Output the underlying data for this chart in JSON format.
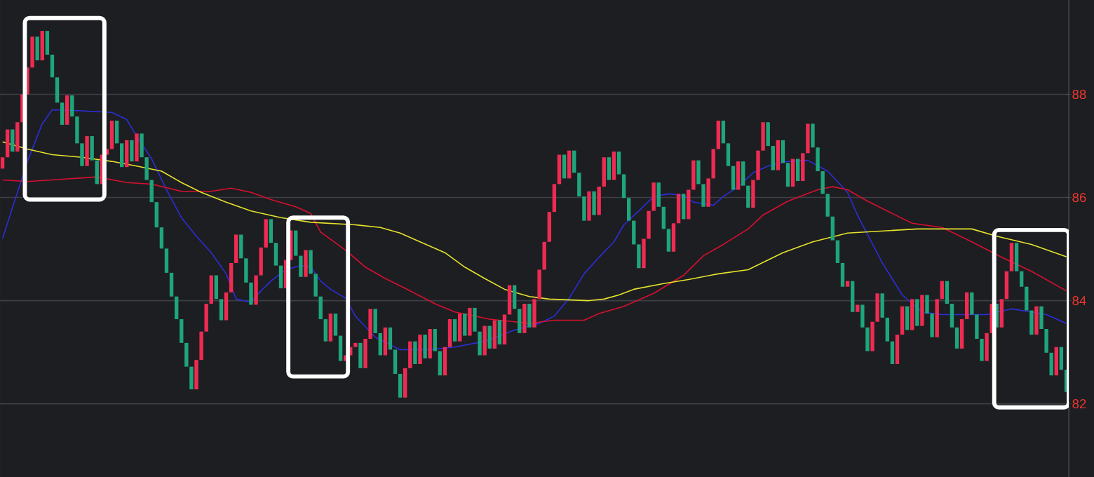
{
  "chart_data": {
    "type": "candlestick",
    "categories": [
      null,
      null,
      null,
      null,
      null,
      null,
      null,
      null,
      null,
      null,
      null,
      null,
      null,
      null,
      null,
      null,
      null,
      null,
      null,
      null,
      null,
      null,
      null,
      null,
      null,
      null,
      null,
      null,
      null,
      null,
      null,
      null,
      null,
      null,
      null,
      null,
      null,
      null,
      null,
      null,
      null,
      null,
      null,
      null,
      null,
      null,
      null,
      null,
      null,
      null,
      null,
      null,
      null,
      null,
      null,
      null,
      null,
      null,
      null,
      null,
      null,
      null,
      null,
      null,
      null,
      null,
      null,
      null,
      null,
      null,
      null,
      null,
      null,
      null,
      null,
      null,
      null,
      null,
      null,
      null,
      null,
      null,
      null,
      null,
      null,
      null,
      null,
      null,
      null,
      null,
      null,
      null,
      null,
      null,
      null,
      null,
      null,
      null,
      null,
      null,
      null,
      null,
      null,
      null,
      null,
      null,
      null,
      null,
      null,
      null,
      null,
      null,
      null,
      null,
      null,
      null,
      null,
      null,
      null,
      null,
      null,
      null,
      null,
      null,
      null,
      null,
      null,
      null,
      null,
      null,
      null,
      null,
      null,
      null,
      null,
      null,
      null,
      null,
      null,
      null,
      null,
      null,
      null,
      null,
      null,
      null,
      null,
      null,
      null,
      null,
      null,
      null,
      null,
      null,
      null,
      null,
      null,
      null,
      null,
      null,
      null,
      null,
      null,
      null,
      null,
      null,
      null,
      null,
      null,
      null,
      null,
      null,
      null,
      null,
      null,
      null,
      null,
      null,
      null,
      null,
      null,
      null,
      null,
      null,
      null,
      null,
      null,
      null,
      null,
      null,
      null,
      null,
      null,
      null,
      null,
      null,
      null,
      null,
      null,
      null,
      null,
      null,
      null,
      null,
      null,
      null,
      null,
      null,
      null,
      null,
      null,
      null,
      null,
      null,
      null
    ],
    "ohlc": [
      [
        86.56,
        86.78,
        86.56,
        86.78
      ],
      [
        86.78,
        87.32,
        86.78,
        87.32
      ],
      [
        87.32,
        87.32,
        86.89,
        86.89
      ],
      [
        86.89,
        87.46,
        86.89,
        87.46
      ],
      [
        87.46,
        88.0,
        87.46,
        88.0
      ],
      [
        88.0,
        88.52,
        88.0,
        88.52
      ],
      [
        88.52,
        89.12,
        88.52,
        89.12
      ],
      [
        89.12,
        89.12,
        88.66,
        88.66
      ],
      [
        88.66,
        89.23,
        88.66,
        89.23
      ],
      [
        89.23,
        89.23,
        88.77,
        88.77
      ],
      [
        88.77,
        88.77,
        88.33,
        88.33
      ],
      [
        88.33,
        88.33,
        87.84,
        87.84
      ],
      [
        87.84,
        87.84,
        87.41,
        87.41
      ],
      [
        87.41,
        87.98,
        87.41,
        87.98
      ],
      [
        87.98,
        87.98,
        87.57,
        87.57
      ],
      [
        87.57,
        87.57,
        87.05,
        87.05
      ],
      [
        87.05,
        87.05,
        86.61,
        86.61
      ],
      [
        86.61,
        87.19,
        86.61,
        87.19
      ],
      [
        87.19,
        87.19,
        86.72,
        86.72
      ],
      [
        86.72,
        86.72,
        86.26,
        86.26
      ],
      [
        86.26,
        86.83,
        86.26,
        86.83
      ],
      [
        86.83,
        86.94,
        86.83,
        86.94
      ],
      [
        86.94,
        87.49,
        86.94,
        87.49
      ],
      [
        87.49,
        87.49,
        87.05,
        87.05
      ],
      [
        87.05,
        87.05,
        86.59,
        86.59
      ],
      [
        86.59,
        87.11,
        86.59,
        87.11
      ],
      [
        87.11,
        87.11,
        86.7,
        86.7
      ],
      [
        86.7,
        87.24,
        86.7,
        87.24
      ],
      [
        87.24,
        87.24,
        86.78,
        86.78
      ],
      [
        86.78,
        86.78,
        86.34,
        86.34
      ],
      [
        86.34,
        86.34,
        85.91,
        85.91
      ],
      [
        85.91,
        85.91,
        85.42,
        85.42
      ],
      [
        85.42,
        85.42,
        85.01,
        85.01
      ],
      [
        85.01,
        85.01,
        84.54,
        84.54
      ],
      [
        84.54,
        84.54,
        84.08,
        84.08
      ],
      [
        84.08,
        84.08,
        83.64,
        83.64
      ],
      [
        83.64,
        83.64,
        83.18,
        83.18
      ],
      [
        83.18,
        83.18,
        82.72,
        82.72
      ],
      [
        82.72,
        82.72,
        82.28,
        82.28
      ],
      [
        82.28,
        82.85,
        82.28,
        82.85
      ],
      [
        82.85,
        83.4,
        82.85,
        83.4
      ],
      [
        83.4,
        83.94,
        83.4,
        83.94
      ],
      [
        83.94,
        84.49,
        83.94,
        84.49
      ],
      [
        84.49,
        84.49,
        84.03,
        84.03
      ],
      [
        84.03,
        84.03,
        83.62,
        83.62
      ],
      [
        83.62,
        84.16,
        83.62,
        84.16
      ],
      [
        84.16,
        84.73,
        84.16,
        84.73
      ],
      [
        84.73,
        85.28,
        84.73,
        85.28
      ],
      [
        85.28,
        85.28,
        84.82,
        84.82
      ],
      [
        84.82,
        84.82,
        84.35,
        84.35
      ],
      [
        84.35,
        84.35,
        83.92,
        83.92
      ],
      [
        83.92,
        84.49,
        83.92,
        84.49
      ],
      [
        84.49,
        85.03,
        84.49,
        85.03
      ],
      [
        85.03,
        85.58,
        85.03,
        85.58
      ],
      [
        85.58,
        85.58,
        85.12,
        85.12
      ],
      [
        85.12,
        85.12,
        84.68,
        84.68
      ],
      [
        84.68,
        84.68,
        84.24,
        84.24
      ],
      [
        84.24,
        84.79,
        84.24,
        84.79
      ],
      [
        84.79,
        85.36,
        84.79,
        85.36
      ],
      [
        85.36,
        85.36,
        84.87,
        84.87
      ],
      [
        84.87,
        84.87,
        84.46,
        84.46
      ],
      [
        84.46,
        84.98,
        84.46,
        84.98
      ],
      [
        84.98,
        84.98,
        84.52,
        84.52
      ],
      [
        84.52,
        84.52,
        84.08,
        84.08
      ],
      [
        84.08,
        84.08,
        83.64,
        83.64
      ],
      [
        83.64,
        83.64,
        83.21,
        83.21
      ],
      [
        83.21,
        83.75,
        83.21,
        83.75
      ],
      [
        83.75,
        83.75,
        83.32,
        83.32
      ],
      [
        83.32,
        83.32,
        82.83,
        82.83
      ],
      [
        82.83,
        82.94,
        82.83,
        82.94
      ],
      [
        82.94,
        83.1,
        82.94,
        83.1
      ],
      [
        83.1,
        83.18,
        83.1,
        83.18
      ],
      [
        83.18,
        83.18,
        82.69,
        82.69
      ],
      [
        82.69,
        83.26,
        82.69,
        83.26
      ],
      [
        83.26,
        83.84,
        83.26,
        83.84
      ],
      [
        83.84,
        83.84,
        83.37,
        83.37
      ],
      [
        83.37,
        83.37,
        82.94,
        82.94
      ],
      [
        82.94,
        83.48,
        82.94,
        83.48
      ],
      [
        83.48,
        83.48,
        83.05,
        83.05
      ],
      [
        83.05,
        83.05,
        82.58,
        82.58
      ],
      [
        82.58,
        82.58,
        82.12,
        82.12
      ],
      [
        82.12,
        82.69,
        82.12,
        82.69
      ],
      [
        82.69,
        83.21,
        82.69,
        83.21
      ],
      [
        83.21,
        83.21,
        82.77,
        82.77
      ],
      [
        82.77,
        83.34,
        82.77,
        83.34
      ],
      [
        83.34,
        83.34,
        82.88,
        82.88
      ],
      [
        82.88,
        83.45,
        82.88,
        83.45
      ],
      [
        83.45,
        83.45,
        83.02,
        83.02
      ],
      [
        83.02,
        83.02,
        82.55,
        82.55
      ],
      [
        82.55,
        83.1,
        82.55,
        83.1
      ],
      [
        83.1,
        83.64,
        83.1,
        83.64
      ],
      [
        83.64,
        83.64,
        83.21,
        83.21
      ],
      [
        83.21,
        83.75,
        83.21,
        83.75
      ],
      [
        83.75,
        83.75,
        83.32,
        83.32
      ],
      [
        83.32,
        83.86,
        83.32,
        83.86
      ],
      [
        83.86,
        83.86,
        83.4,
        83.4
      ],
      [
        83.4,
        83.4,
        82.94,
        82.94
      ],
      [
        82.94,
        83.51,
        82.94,
        83.51
      ],
      [
        83.51,
        83.51,
        83.07,
        83.07
      ],
      [
        83.07,
        83.62,
        83.07,
        83.62
      ],
      [
        83.62,
        83.62,
        83.15,
        83.15
      ],
      [
        83.15,
        83.73,
        83.15,
        83.73
      ],
      [
        83.73,
        84.3,
        83.73,
        84.3
      ],
      [
        84.3,
        84.3,
        83.84,
        83.84
      ],
      [
        83.84,
        83.84,
        83.37,
        83.37
      ],
      [
        83.37,
        83.94,
        83.37,
        83.94
      ],
      [
        83.94,
        83.94,
        83.48,
        83.48
      ],
      [
        83.48,
        84.03,
        83.48,
        84.03
      ],
      [
        84.03,
        84.6,
        84.03,
        84.6
      ],
      [
        84.6,
        85.14,
        84.6,
        85.14
      ],
      [
        85.14,
        85.72,
        85.14,
        85.72
      ],
      [
        85.72,
        86.26,
        85.72,
        86.26
      ],
      [
        86.26,
        86.83,
        86.26,
        86.83
      ],
      [
        86.83,
        86.83,
        86.37,
        86.37
      ],
      [
        86.37,
        86.91,
        86.37,
        86.91
      ],
      [
        86.91,
        86.91,
        86.48,
        86.48
      ],
      [
        86.48,
        86.48,
        86.02,
        86.02
      ],
      [
        86.02,
        86.02,
        85.55,
        85.55
      ],
      [
        85.55,
        86.12,
        85.55,
        86.12
      ],
      [
        86.12,
        86.12,
        85.66,
        85.66
      ],
      [
        85.66,
        86.21,
        85.66,
        86.21
      ],
      [
        86.21,
        86.78,
        86.21,
        86.78
      ],
      [
        86.78,
        86.78,
        86.34,
        86.34
      ],
      [
        86.34,
        86.89,
        86.34,
        86.89
      ],
      [
        86.89,
        86.89,
        86.45,
        86.45
      ],
      [
        86.45,
        86.45,
        85.99,
        85.99
      ],
      [
        85.99,
        85.99,
        85.55,
        85.55
      ],
      [
        85.55,
        85.55,
        85.09,
        85.09
      ],
      [
        85.09,
        85.09,
        84.63,
        84.63
      ],
      [
        84.63,
        85.2,
        84.63,
        85.2
      ],
      [
        85.2,
        85.74,
        85.2,
        85.74
      ],
      [
        85.74,
        86.29,
        85.74,
        86.29
      ],
      [
        86.29,
        86.29,
        85.82,
        85.82
      ],
      [
        85.82,
        85.82,
        85.39,
        85.39
      ],
      [
        85.39,
        85.39,
        84.95,
        84.95
      ],
      [
        84.95,
        85.5,
        84.95,
        85.5
      ],
      [
        85.5,
        86.07,
        85.5,
        86.07
      ],
      [
        86.07,
        86.07,
        85.58,
        85.58
      ],
      [
        85.58,
        86.15,
        85.58,
        86.15
      ],
      [
        86.15,
        86.72,
        86.15,
        86.72
      ],
      [
        86.72,
        86.72,
        86.26,
        86.26
      ],
      [
        86.26,
        86.26,
        85.82,
        85.82
      ],
      [
        85.82,
        86.37,
        85.82,
        86.37
      ],
      [
        86.37,
        86.94,
        86.37,
        86.94
      ],
      [
        86.94,
        87.49,
        86.94,
        87.49
      ],
      [
        87.49,
        87.49,
        87.05,
        87.05
      ],
      [
        87.05,
        87.05,
        86.61,
        86.61
      ],
      [
        86.61,
        86.61,
        86.15,
        86.15
      ],
      [
        86.15,
        86.7,
        86.15,
        86.7
      ],
      [
        86.7,
        86.7,
        86.23,
        86.23
      ],
      [
        86.23,
        86.23,
        85.8,
        85.8
      ],
      [
        85.8,
        86.34,
        85.8,
        86.34
      ],
      [
        86.34,
        86.91,
        86.34,
        86.91
      ],
      [
        86.91,
        87.46,
        86.91,
        87.46
      ],
      [
        87.46,
        87.46,
        87.0,
        87.0
      ],
      [
        87.0,
        87.0,
        86.53,
        86.53
      ],
      [
        86.53,
        87.11,
        86.53,
        87.11
      ],
      [
        87.11,
        87.11,
        86.67,
        86.67
      ],
      [
        86.67,
        86.67,
        86.21,
        86.21
      ],
      [
        86.21,
        86.75,
        86.21,
        86.75
      ],
      [
        86.75,
        86.75,
        86.32,
        86.32
      ],
      [
        86.32,
        86.86,
        86.32,
        86.86
      ],
      [
        86.86,
        87.43,
        86.86,
        87.43
      ],
      [
        87.43,
        87.43,
        86.97,
        86.97
      ],
      [
        86.97,
        86.97,
        86.51,
        86.51
      ],
      [
        86.51,
        86.51,
        86.07,
        86.07
      ],
      [
        86.07,
        86.07,
        85.63,
        85.63
      ],
      [
        85.63,
        85.63,
        85.17,
        85.17
      ],
      [
        85.17,
        85.17,
        84.73,
        84.73
      ],
      [
        84.73,
        84.73,
        84.27,
        84.27
      ],
      [
        84.27,
        84.38,
        84.27,
        84.38
      ],
      [
        84.38,
        84.38,
        83.78,
        83.78
      ],
      [
        83.78,
        83.92,
        83.78,
        83.92
      ],
      [
        83.92,
        83.92,
        83.48,
        83.48
      ],
      [
        83.48,
        83.48,
        83.02,
        83.02
      ],
      [
        83.02,
        83.59,
        83.02,
        83.59
      ],
      [
        83.59,
        84.14,
        83.59,
        84.14
      ],
      [
        84.14,
        84.14,
        83.67,
        83.67
      ],
      [
        83.67,
        83.67,
        83.21,
        83.21
      ],
      [
        83.21,
        83.21,
        82.77,
        82.77
      ],
      [
        82.77,
        83.34,
        82.77,
        83.34
      ],
      [
        83.34,
        83.89,
        83.34,
        83.89
      ],
      [
        83.89,
        83.89,
        83.43,
        83.43
      ],
      [
        83.43,
        84.03,
        83.43,
        84.03
      ],
      [
        84.03,
        84.03,
        83.51,
        83.51
      ],
      [
        83.51,
        84.11,
        83.51,
        84.11
      ],
      [
        84.11,
        84.11,
        83.75,
        83.75
      ],
      [
        83.75,
        83.75,
        83.29,
        83.29
      ],
      [
        83.29,
        84.03,
        83.29,
        84.03
      ],
      [
        84.03,
        84.38,
        84.03,
        84.38
      ],
      [
        84.38,
        84.38,
        83.94,
        83.94
      ],
      [
        83.94,
        83.94,
        83.48,
        83.48
      ],
      [
        83.48,
        83.48,
        83.07,
        83.07
      ],
      [
        83.07,
        83.64,
        83.07,
        83.64
      ],
      [
        83.64,
        84.16,
        83.64,
        84.16
      ],
      [
        84.16,
        84.16,
        83.73,
        83.73
      ],
      [
        83.73,
        83.73,
        83.26,
        83.26
      ],
      [
        83.26,
        83.26,
        82.83,
        82.83
      ],
      [
        82.83,
        83.37,
        82.83,
        83.37
      ],
      [
        83.37,
        83.94,
        83.37,
        83.94
      ],
      [
        83.94,
        83.94,
        83.48,
        83.48
      ],
      [
        83.48,
        84.03,
        83.48,
        84.03
      ],
      [
        84.03,
        84.57,
        84.03,
        84.57
      ],
      [
        84.57,
        85.12,
        84.57,
        85.12
      ],
      [
        85.12,
        85.12,
        84.57,
        84.57
      ],
      [
        84.57,
        84.57,
        84.27,
        84.27
      ],
      [
        84.27,
        84.27,
        83.81,
        83.81
      ],
      [
        83.81,
        83.81,
        83.34,
        83.34
      ],
      [
        83.34,
        83.89,
        83.34,
        83.89
      ],
      [
        83.89,
        83.89,
        83.45,
        83.45
      ],
      [
        83.45,
        83.45,
        82.99,
        82.99
      ],
      [
        82.99,
        82.99,
        82.55,
        82.55
      ],
      [
        82.55,
        83.1,
        82.55,
        83.1
      ],
      [
        83.1,
        83.1,
        82.66,
        82.66
      ],
      [
        82.66,
        82.66,
        82.23,
        82.23
      ]
    ],
    "series": [
      {
        "type": "line",
        "color": "#2c2ed8",
        "values": [
          85.2,
          null,
          null,
          null,
          null,
          86.7,
          null,
          null,
          87.43,
          null,
          87.7,
          null,
          null,
          null,
          null,
          null,
          87.68,
          null,
          null,
          null,
          null,
          null,
          87.65,
          null,
          null,
          87.51,
          null,
          87.19,
          null,
          null,
          86.75,
          null,
          null,
          86.15,
          null,
          null,
          85.61,
          null,
          null,
          85.25,
          null,
          null,
          84.93,
          null,
          null,
          84.52,
          null,
          84.03,
          null,
          null,
          83.97,
          null,
          84.19,
          null,
          84.38,
          null,
          null,
          84.6,
          null,
          null,
          84.68,
          null,
          84.65,
          null,
          84.38,
          null,
          84.22,
          null,
          null,
          84.05,
          null,
          83.7,
          null,
          null,
          null,
          83.29,
          null,
          null,
          null,
          null,
          83.05,
          null,
          null,
          null,
          null,
          null,
          83.05,
          null,
          null,
          null,
          null,
          83.1,
          null,
          null,
          null,
          null,
          null,
          83.21,
          null,
          null,
          null,
          null,
          null,
          83.43,
          null,
          null,
          null,
          null,
          83.56,
          null,
          null,
          83.7,
          null,
          null,
          84.05,
          null,
          null,
          84.52,
          null,
          null,
          84.84,
          null,
          null,
          85.14,
          null,
          85.47,
          null,
          null,
          85.74,
          null,
          null,
          86.02,
          null,
          null,
          86.07,
          null,
          null,
          86.04,
          null,
          85.91,
          null,
          null,
          null,
          85.85,
          null,
          86.02,
          null,
          null,
          86.21,
          null,
          null,
          86.48,
          null,
          null,
          86.61,
          null,
          null,
          null,
          86.7,
          null,
          null,
          null,
          86.72,
          null,
          null,
          null,
          86.51,
          null,
          null,
          null,
          86.1,
          null,
          85.66,
          null,
          null,
          null,
          null,
          84.73,
          null,
          null,
          null,
          84.11,
          null,
          null,
          null,
          83.78,
          null,
          null,
          null,
          83.73,
          null,
          null,
          null,
          null,
          null,
          null,
          null,
          null,
          83.73,
          null,
          null,
          null,
          null,
          83.84,
          null,
          null,
          null,
          83.78,
          null,
          null,
          83.73,
          null,
          null,
          null,
          83.56
        ]
      },
      {
        "type": "line",
        "color": "#d8102d",
        "values": [
          86.34,
          null,
          null,
          null,
          null,
          86.31,
          null,
          null,
          null,
          null,
          86.34,
          null,
          null,
          null,
          null,
          null,
          null,
          null,
          null,
          86.4,
          null,
          null,
          null,
          null,
          null,
          86.29,
          null,
          null,
          null,
          null,
          86.26,
          null,
          null,
          null,
          null,
          null,
          86.12,
          null,
          null,
          null,
          null,
          null,
          86.12,
          null,
          null,
          null,
          86.18,
          null,
          null,
          null,
          86.1,
          null,
          null,
          null,
          85.96,
          null,
          null,
          null,
          null,
          85.82,
          null,
          null,
          85.69,
          null,
          85.33,
          null,
          null,
          null,
          null,
          84.98,
          null,
          null,
          null,
          84.65,
          null,
          null,
          null,
          84.43,
          null,
          null,
          null,
          84.24,
          null,
          null,
          null,
          null,
          null,
          83.94,
          null,
          null,
          null,
          83.78,
          null,
          null,
          null,
          null,
          null,
          null,
          83.64,
          null,
          null,
          null,
          null,
          null,
          null,
          null,
          83.56,
          null,
          null,
          null,
          null,
          83.62,
          null,
          null,
          null,
          null,
          null,
          83.62,
          null,
          null,
          83.75,
          null,
          null,
          null,
          null,
          83.89,
          null,
          null,
          null,
          null,
          null,
          84.14,
          null,
          null,
          null,
          null,
          null,
          84.49,
          null,
          null,
          null,
          84.87,
          null,
          null,
          null,
          85.09,
          null,
          null,
          null,
          null,
          85.39,
          null,
          null,
          85.66,
          null,
          null,
          null,
          null,
          85.93,
          null,
          null,
          null,
          null,
          null,
          86.15,
          null,
          null,
          86.21,
          null,
          null,
          86.15,
          null,
          null,
          null,
          85.93,
          null,
          null,
          null,
          null,
          85.69,
          null,
          null,
          null,
          85.5,
          null,
          null,
          null,
          null,
          null,
          85.42,
          null,
          null,
          null,
          null,
          null,
          85.14,
          null,
          null,
          null,
          null,
          null,
          84.84,
          null,
          null,
          null,
          null,
          null,
          84.57,
          null,
          null,
          null,
          null,
          null,
          null,
          84.19
        ]
      },
      {
        "type": "line",
        "color": "#e6e32c",
        "values": [
          87.08,
          null,
          null,
          null,
          null,
          86.94,
          null,
          null,
          null,
          null,
          86.83,
          null,
          null,
          null,
          null,
          null,
          86.78,
          null,
          null,
          null,
          null,
          null,
          86.7,
          null,
          null,
          null,
          null,
          86.61,
          null,
          null,
          null,
          null,
          86.51,
          null,
          null,
          null,
          86.29,
          null,
          null,
          null,
          86.1,
          null,
          null,
          null,
          null,
          85.91,
          null,
          null,
          null,
          null,
          85.74,
          null,
          null,
          null,
          null,
          null,
          85.61,
          null,
          null,
          null,
          null,
          null,
          85.52,
          null,
          null,
          null,
          null,
          null,
          null,
          null,
          null,
          85.47,
          null,
          null,
          null,
          null,
          85.42,
          null,
          null,
          null,
          85.31,
          null,
          null,
          null,
          85.14,
          null,
          null,
          null,
          null,
          84.93,
          null,
          null,
          null,
          84.65,
          null,
          null,
          null,
          84.43,
          null,
          null,
          null,
          84.22,
          null,
          null,
          null,
          null,
          84.08,
          null,
          null,
          null,
          84.03,
          null,
          null,
          null,
          null,
          null,
          null,
          null,
          84.0,
          null,
          null,
          84.03,
          null,
          null,
          84.11,
          null,
          null,
          84.22,
          null,
          null,
          null,
          null,
          null,
          84.33,
          null,
          null,
          null,
          null,
          84.41,
          null,
          null,
          null,
          null,
          null,
          84.52,
          null,
          null,
          null,
          null,
          null,
          84.6,
          null,
          null,
          null,
          null,
          null,
          null,
          84.93,
          null,
          null,
          null,
          null,
          null,
          85.14,
          null,
          null,
          null,
          null,
          null,
          null,
          85.31,
          null,
          null,
          null,
          null,
          null,
          null,
          null,
          null,
          null,
          null,
          null,
          null,
          null,
          85.39,
          null,
          null,
          null,
          null,
          null,
          null,
          null,
          null,
          null,
          null,
          85.39,
          null,
          null,
          null,
          null,
          85.25,
          null,
          null,
          null,
          null,
          null,
          null,
          85.09,
          null,
          null,
          null,
          null,
          null,
          null,
          84.85
        ]
      }
    ],
    "ylim": [
      80.58,
      89.83
    ],
    "yticks": [
      82,
      84,
      86,
      88
    ],
    "grid": "y",
    "tick_labels": "y"
  }
}
